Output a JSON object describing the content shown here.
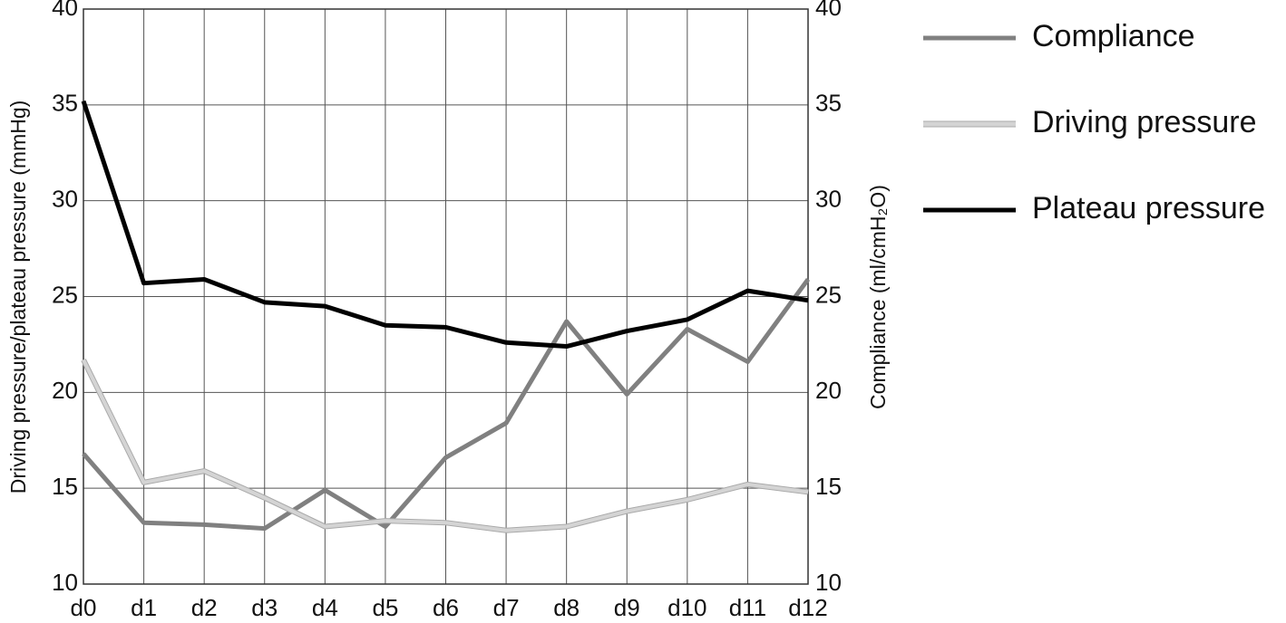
{
  "chart_data": {
    "type": "line",
    "x_label": "",
    "y_label": "Driving pressure/plateau pressure (mmHg)",
    "y2_label": "Compliance (ml/cmH₂O)",
    "categories": [
      "d0",
      "d1",
      "d2",
      "d3",
      "d4",
      "d5",
      "d6",
      "d7",
      "d8",
      "d9",
      "d10",
      "d11",
      "d12"
    ],
    "series": [
      {
        "name": "Compliance",
        "color": "#808080",
        "axis": "y2",
        "values": [
          16.8,
          13.2,
          13.1,
          12.9,
          14.9,
          13.0,
          16.6,
          18.4,
          23.7,
          19.9,
          23.3,
          21.6,
          25.9
        ]
      },
      {
        "name": "Driving pressure",
        "color": "#d4d4d4",
        "values": [
          21.7,
          15.3,
          15.9,
          14.5,
          13.0,
          13.3,
          13.2,
          12.8,
          13.0,
          13.8,
          14.4,
          15.2,
          14.8
        ]
      },
      {
        "name": "Plateau pressure",
        "color": "#000000",
        "values": [
          35.2,
          25.7,
          25.9,
          24.7,
          24.5,
          23.5,
          23.4,
          22.6,
          22.4,
          23.2,
          23.8,
          25.3,
          24.8
        ]
      }
    ],
    "ylim": [
      10,
      40
    ],
    "yticks": [
      10,
      15,
      20,
      25,
      30,
      35,
      40
    ],
    "y2lim": [
      10,
      40
    ],
    "y2ticks": [
      10,
      15,
      20,
      25,
      30,
      35,
      40
    ],
    "grid": true,
    "legend": "right"
  }
}
